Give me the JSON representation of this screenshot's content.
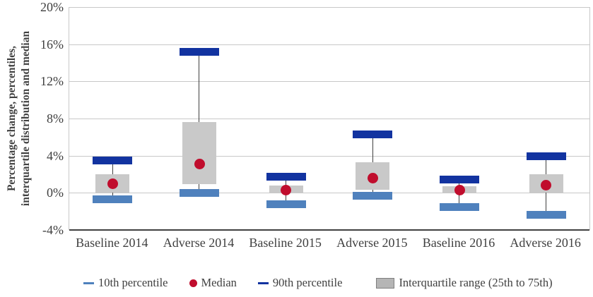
{
  "chart_data": {
    "type": "box-percentile",
    "title": "",
    "ylabel": "Percentage change, percentiles,\ninterquartile distribution and median",
    "xlabel": "",
    "ylim": [
      -4,
      20
    ],
    "y_ticks": [
      "20%",
      "16%",
      "12%",
      "8%",
      "4%",
      "0%",
      "-4%"
    ],
    "y_tick_values": [
      20,
      16,
      12,
      8,
      4,
      0,
      -4
    ],
    "grid": true,
    "legend_position": "bottom",
    "categories": [
      "Baseline 2014",
      "Adverse 2014",
      "Baseline 2015",
      "Adverse 2015",
      "Baseline 2016",
      "Adverse 2016"
    ],
    "series": {
      "p90": [
        3.5,
        15.2,
        1.7,
        6.3,
        1.4,
        3.9
      ],
      "p75": [
        2.0,
        7.6,
        0.8,
        3.3,
        0.7,
        2.0
      ],
      "median": [
        1.0,
        3.1,
        0.3,
        1.6,
        0.3,
        0.8
      ],
      "p25": [
        0.0,
        0.9,
        0.0,
        0.3,
        0.0,
        0.0
      ],
      "p10": [
        -0.7,
        0.0,
        -1.2,
        -0.3,
        -1.5,
        -2.4
      ]
    },
    "legend": [
      {
        "id": "p10",
        "label": "10th percentile",
        "swatch": "dash",
        "icon": "dash-icon",
        "color": "#4f81bd"
      },
      {
        "id": "median",
        "label": "Median",
        "swatch": "dot",
        "icon": "dot-icon",
        "color": "#c00d2d"
      },
      {
        "id": "p90",
        "label": "90th percentile",
        "swatch": "dash",
        "icon": "dash-icon",
        "color": "#1233a0"
      },
      {
        "id": "iqr",
        "label": "Interquartile range (25th to 75th)",
        "swatch": "box",
        "icon": "box-icon",
        "color": "#b5b5b5"
      }
    ],
    "colors": {
      "p90_bar": "#1233a0",
      "p10_bar": "#4f81bd",
      "median_dot": "#c00d2d",
      "iqr_box": "#c9c9c9",
      "whisker": "#404040",
      "gridline": "#c8c8c8",
      "axis_line": "#404040",
      "text": "#3f3f3f",
      "background": "#ffffff"
    }
  }
}
